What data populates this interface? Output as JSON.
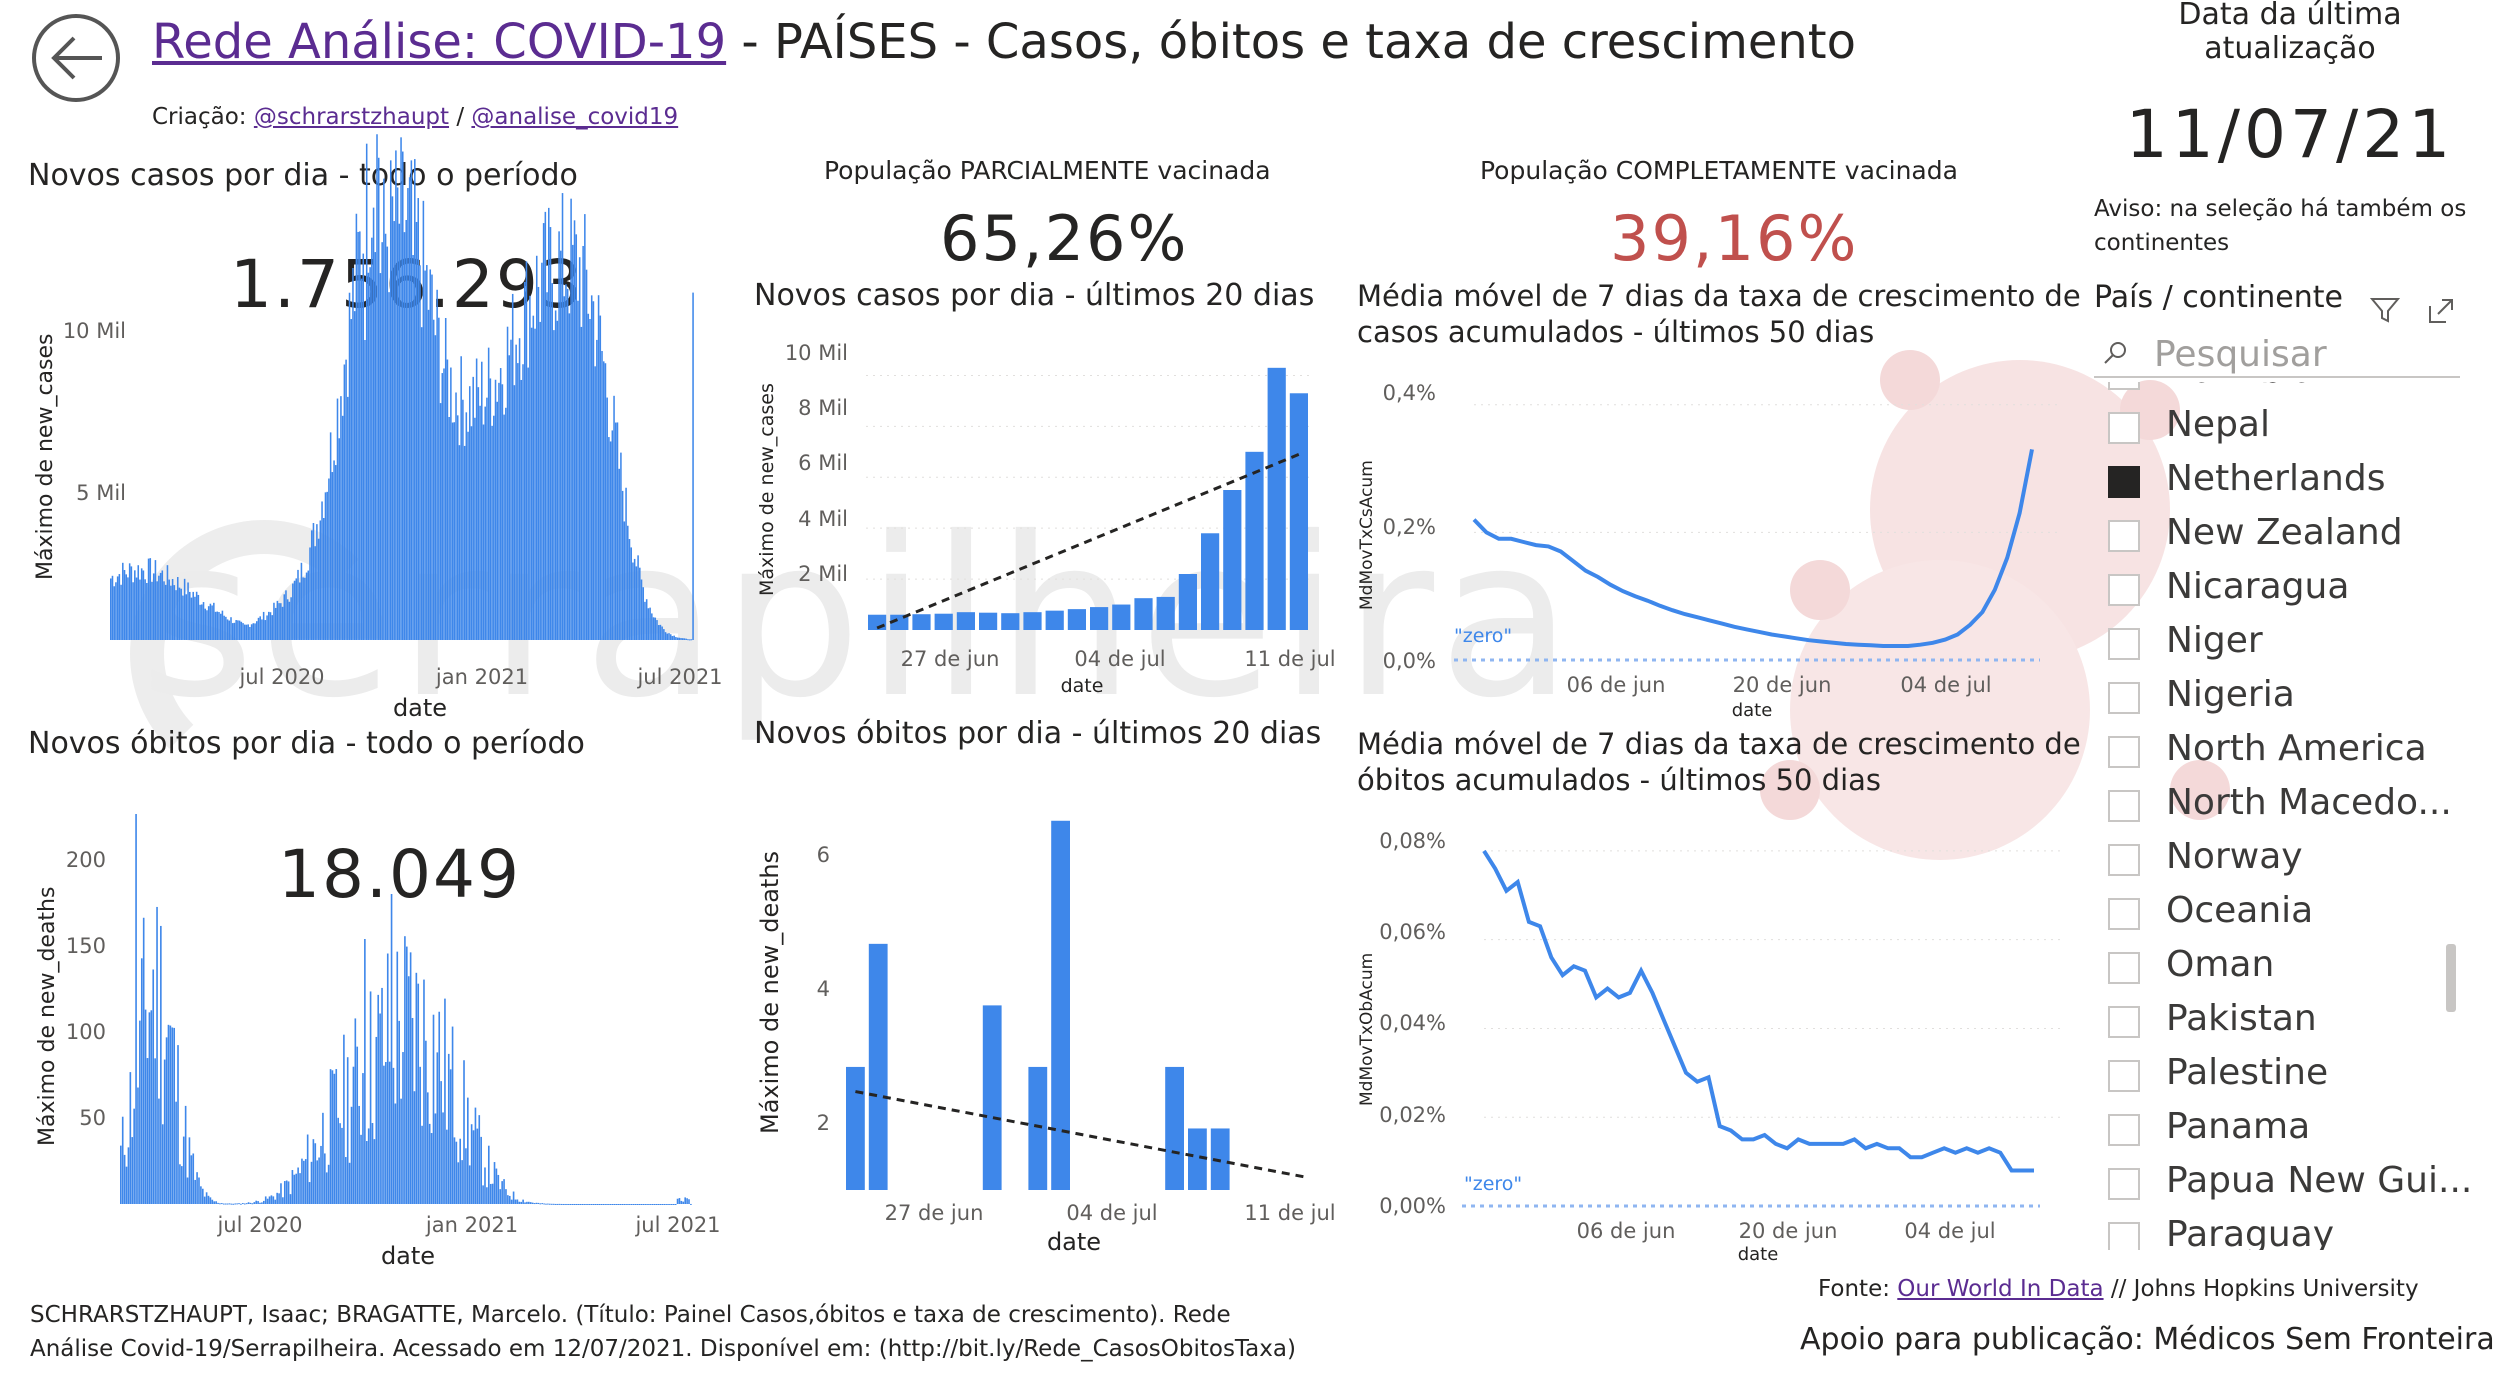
{
  "header": {
    "title_link": "Rede Análise: COVID-19",
    "title_rest": " - PAÍSES - Casos, óbitos e taxa de crescimento",
    "credits_prefix": "Criação: ",
    "credit1": "@schrarstzhaupt",
    "credits_sep": " / ",
    "credit2": "@analise_covid19"
  },
  "watermark": "serrapilheira",
  "colors": {
    "bar": "#3e87ea",
    "line": "#3e87ea",
    "red": "#c0504d",
    "zero_line": "#8fb6f1"
  },
  "update": {
    "label": "Data da última atualização",
    "date": "11/07/21"
  },
  "aviso": "Aviso: na seleção há também os continentes",
  "vaccination": {
    "partial_label": "População PARCIALMENTE vacinada",
    "partial_value": "65,26%",
    "complete_label": "População COMPLETAMENTE vacinada",
    "complete_value": "39,16%"
  },
  "cases_total": {
    "title": "Novos casos por dia - todo o período",
    "kpi": "1.756.293",
    "ylabel": "Máximo de new_cases",
    "xlabel": "date",
    "yticks": [
      "10 Mil",
      "5 Mil"
    ],
    "xticks": [
      "jul 2020",
      "jan 2021",
      "jul 2021"
    ]
  },
  "deaths_total": {
    "title": "Novos óbitos por dia - todo o período",
    "kpi": "18.049",
    "ylabel": "Máximo de new_deaths",
    "xlabel": "date",
    "yticks": [
      "200",
      "150",
      "100",
      "50"
    ],
    "xticks": [
      "jul 2020",
      "jan 2021",
      "jul 2021"
    ]
  },
  "cases_20": {
    "title": "Novos casos por dia - últimos 20 dias",
    "ylabel": "Máximo de new_cases",
    "xlabel": "date",
    "yticks": [
      "10 Mil",
      "8 Mil",
      "6 Mil",
      "4 Mil",
      "2 Mil"
    ],
    "xticks": [
      "27 de jun",
      "04 de jul",
      "11 de jul"
    ]
  },
  "deaths_20": {
    "title": "Novos óbitos por dia - últimos 20 dias",
    "ylabel": "Máximo de new_deaths",
    "xlabel": "date",
    "yticks": [
      "6",
      "4",
      "2"
    ],
    "xticks": [
      "27 de jun",
      "04 de jul",
      "11 de jul"
    ]
  },
  "growth_cases": {
    "title1": "Média móvel de 7 dias da taxa de crescimento de",
    "title2": "casos acumulados - últimos 50 dias",
    "ylabel": "MdMovTxCsAcum",
    "xlabel": "date",
    "zero_label": "\"zero\"",
    "yticks": [
      "0,4%",
      "0,2%",
      "0,0%"
    ],
    "xticks": [
      "06 de jun",
      "20 de jun",
      "04 de jul"
    ]
  },
  "growth_deaths": {
    "title1": "Média móvel de 7 dias da taxa de crescimento de",
    "title2": "óbitos acumulados - últimos 50 dias",
    "ylabel": "MdMovTxObAcum",
    "xlabel": "date",
    "zero_label": "\"zero\"",
    "yticks": [
      "0,08%",
      "0,06%",
      "0,04%",
      "0,02%",
      "0,00%"
    ],
    "xticks": [
      "06 de jun",
      "20 de jun",
      "04 de jul"
    ]
  },
  "slicer": {
    "title": "País / continente",
    "search_placeholder": "Pesquisar",
    "items": [
      {
        "label": "Namibia",
        "checked": false
      },
      {
        "label": "Nepal",
        "checked": false
      },
      {
        "label": "Netherlands",
        "checked": true
      },
      {
        "label": "New Zealand",
        "checked": false
      },
      {
        "label": "Nicaragua",
        "checked": false
      },
      {
        "label": "Niger",
        "checked": false
      },
      {
        "label": "Nigeria",
        "checked": false
      },
      {
        "label": "North America",
        "checked": false
      },
      {
        "label": "North Macedo...",
        "checked": false
      },
      {
        "label": "Norway",
        "checked": false
      },
      {
        "label": "Oceania",
        "checked": false
      },
      {
        "label": "Oman",
        "checked": false
      },
      {
        "label": "Pakistan",
        "checked": false
      },
      {
        "label": "Palestine",
        "checked": false
      },
      {
        "label": "Panama",
        "checked": false
      },
      {
        "label": "Papua New Gui...",
        "checked": false
      },
      {
        "label": "Paraguay",
        "checked": false
      }
    ]
  },
  "footer": {
    "citation": "SCHRARSTZHAUPT, Isaac; BRAGATTE, Marcelo. (Título: Painel Casos,óbitos e taxa de crescimento). Rede Análise Covid-19/Serrapilheira. Acessado em 12/07/2021. Disponível em: (http://bit.ly/Rede_CasosObitosTaxa)",
    "fonte_prefix": "Fonte: ",
    "fonte_link": "Our World In Data",
    "fonte_rest": " // Johns Hopkins University",
    "apoio": "Apoio para publicação: Médicos Sem Fronteiras"
  },
  "chart_data": [
    {
      "type": "bar",
      "name": "cases_20",
      "categories": [
        "22 jun",
        "23 jun",
        "24 jun",
        "25 jun",
        "26 jun",
        "27 jun",
        "28 jun",
        "29 jun",
        "30 jun",
        "01 jul",
        "02 jul",
        "03 jul",
        "04 jul",
        "05 jul",
        "06 jul",
        "07 jul",
        "08 jul",
        "09 jul",
        "10 jul",
        "11 jul"
      ],
      "values": [
        600,
        600,
        620,
        640,
        700,
        680,
        660,
        700,
        760,
        820,
        900,
        1000,
        1250,
        1300,
        2200,
        3800,
        5500,
        7000,
        10300,
        9300
      ],
      "trend": {
        "start": 0,
        "end": 6900
      },
      "ylim": [
        0,
        11000
      ]
    },
    {
      "type": "bar",
      "name": "deaths_20",
      "categories": [
        "22 jun",
        "23 jun",
        "24 jun",
        "25 jun",
        "26 jun",
        "27 jun",
        "28 jun",
        "29 jun",
        "30 jun",
        "01 jul",
        "02 jul",
        "03 jul",
        "04 jul",
        "05 jul",
        "06 jul",
        "07 jul",
        "08 jul",
        "09 jul",
        "10 jul",
        "11 jul"
      ],
      "values": [
        3,
        5,
        1,
        1,
        1,
        1,
        4,
        1,
        3,
        7,
        1,
        1,
        1,
        1,
        3,
        2,
        2,
        1,
        1,
        1
      ],
      "trend": {
        "start": 2.6,
        "end": 1.2
      },
      "ylim": [
        1,
        7.5
      ]
    },
    {
      "type": "line",
      "name": "growth_cases",
      "values": [
        0.22,
        0.2,
        0.19,
        0.19,
        0.185,
        0.18,
        0.178,
        0.17,
        0.155,
        0.14,
        0.13,
        0.118,
        0.108,
        0.1,
        0.093,
        0.085,
        0.078,
        0.072,
        0.067,
        0.062,
        0.057,
        0.052,
        0.048,
        0.044,
        0.04,
        0.037,
        0.034,
        0.031,
        0.029,
        0.027,
        0.025,
        0.024,
        0.023,
        0.022,
        0.022,
        0.022,
        0.024,
        0.027,
        0.032,
        0.04,
        0.055,
        0.075,
        0.11,
        0.16,
        0.23,
        0.33
      ],
      "ylim": [
        0,
        0.42
      ]
    },
    {
      "type": "line",
      "name": "growth_deaths",
      "values": [
        0.08,
        0.076,
        0.071,
        0.073,
        0.064,
        0.063,
        0.056,
        0.052,
        0.054,
        0.053,
        0.047,
        0.049,
        0.047,
        0.048,
        0.053,
        0.048,
        0.042,
        0.036,
        0.03,
        0.028,
        0.029,
        0.018,
        0.017,
        0.015,
        0.015,
        0.016,
        0.014,
        0.013,
        0.015,
        0.014,
        0.014,
        0.014,
        0.014,
        0.015,
        0.013,
        0.014,
        0.013,
        0.013,
        0.011,
        0.011,
        0.012,
        0.013,
        0.012,
        0.013,
        0.012,
        0.013,
        0.012,
        0.008,
        0.008,
        0.008
      ],
      "ylim": [
        0,
        0.082
      ]
    }
  ]
}
